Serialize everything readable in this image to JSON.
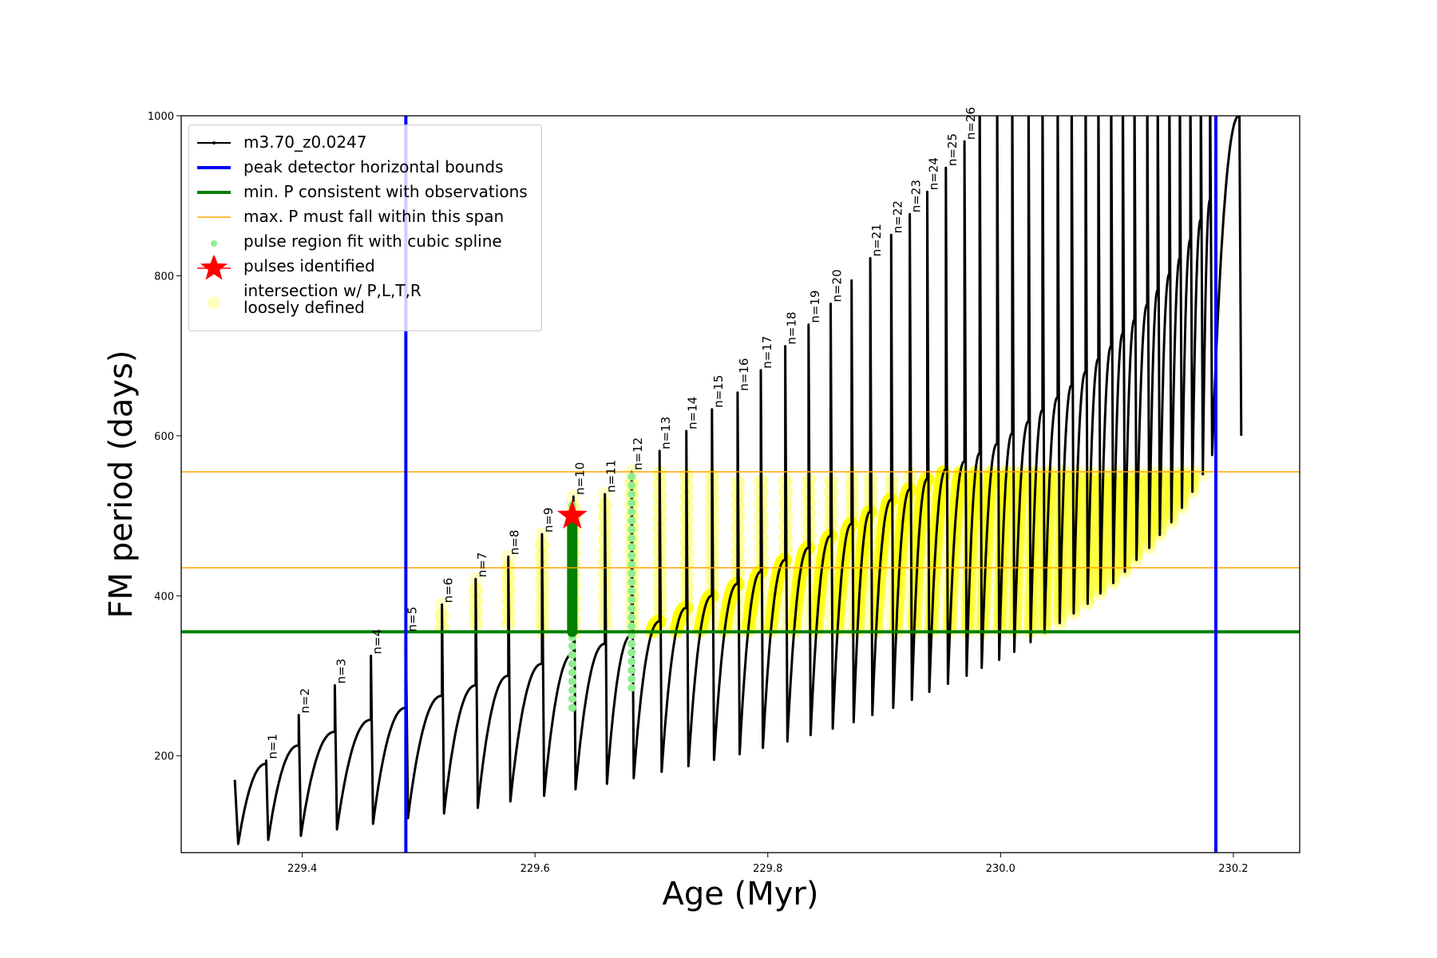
{
  "chart_data": {
    "type": "line",
    "title": "",
    "xlabel": "Age (Myr)",
    "ylabel": "FM period (days)",
    "xlim": [
      229.296,
      230.257
    ],
    "ylim": [
      79,
      1000
    ],
    "xticks": [
      "229.4",
      "229.6",
      "229.8",
      "230.0",
      "230.2"
    ],
    "yticks": [
      "200",
      "400",
      "600",
      "800",
      "1000"
    ],
    "grid": false,
    "legend_placement": "top-left",
    "track": {
      "name": "m3.70_z0.0247",
      "color": "#000000",
      "start": {
        "age": 229.342,
        "period": 170
      },
      "first_trough": {
        "age": 229.345,
        "period": 90
      },
      "pulse_ages": [
        229.369,
        229.397,
        229.428,
        229.459,
        229.489,
        229.52,
        229.549,
        229.577,
        229.606,
        229.633,
        229.66,
        229.683,
        229.707,
        229.73,
        229.752,
        229.774,
        229.794,
        229.815,
        229.835,
        229.854,
        229.872,
        229.888,
        229.906,
        229.922,
        229.937,
        229.953,
        229.969,
        229.982,
        229.997,
        230.01,
        230.024,
        230.036,
        230.049,
        230.061,
        230.073,
        230.084,
        230.095,
        230.105,
        230.115,
        230.126,
        230.135,
        230.145,
        230.154,
        230.163,
        230.172,
        230.18,
        230.205
      ],
      "pre_pulse_period": [
        190,
        213,
        230,
        245,
        260,
        275,
        288,
        300,
        315,
        328,
        340,
        351,
        368,
        385,
        400,
        415,
        430,
        445,
        460,
        475,
        490,
        505,
        520,
        533,
        546,
        558,
        568,
        578,
        590,
        603,
        618,
        632,
        648,
        663,
        680,
        696,
        712,
        728,
        745,
        764,
        782,
        802,
        822,
        845,
        870,
        895,
        1000
      ],
      "pulse_peak_period": [
        194,
        251,
        288,
        325,
        353,
        389,
        421,
        449,
        477,
        524,
        527,
        555,
        581,
        606,
        633,
        654,
        682,
        712,
        739,
        765,
        794,
        822,
        851,
        877,
        905,
        935,
        968,
        1000,
        1000,
        1000,
        1000,
        1000,
        1000,
        1000,
        1000,
        1000,
        1000,
        1000,
        1000,
        1000,
        1000,
        1000,
        1000,
        1000,
        1000,
        1000,
        1000
      ],
      "post_pulse_trough": [
        95,
        100,
        108,
        115,
        122,
        128,
        135,
        143,
        150,
        158,
        165,
        172,
        180,
        187,
        195,
        202,
        210,
        218,
        226,
        234,
        242,
        251,
        260,
        270,
        280,
        290,
        300,
        310,
        320,
        330,
        342,
        354,
        366,
        378,
        390,
        403,
        416,
        430,
        445,
        460,
        476,
        492,
        510,
        530,
        552,
        576,
        600
      ]
    },
    "pulse_labels": [
      {
        "text": "n=1",
        "pulse": 0
      },
      {
        "text": "n=2",
        "pulse": 1
      },
      {
        "text": "n=3",
        "pulse": 2
      },
      {
        "text": "n=4",
        "pulse": 3
      },
      {
        "text": "n=5",
        "pulse": 4
      },
      {
        "text": "n=6",
        "pulse": 5
      },
      {
        "text": "n=7",
        "pulse": 6
      },
      {
        "text": "n=8",
        "pulse": 7
      },
      {
        "text": "n=9",
        "pulse": 8
      },
      {
        "text": "n=10",
        "pulse": 9
      },
      {
        "text": "n=11",
        "pulse": 10
      },
      {
        "text": "n=12",
        "pulse": 11
      },
      {
        "text": "n=13",
        "pulse": 12
      },
      {
        "text": "n=14",
        "pulse": 13
      },
      {
        "text": "n=15",
        "pulse": 14
      },
      {
        "text": "n=16",
        "pulse": 15
      },
      {
        "text": "n=17",
        "pulse": 16
      },
      {
        "text": "n=18",
        "pulse": 17
      },
      {
        "text": "n=19",
        "pulse": 18
      },
      {
        "text": "n=20",
        "pulse": 19
      },
      {
        "text": "n=21",
        "pulse": 21
      },
      {
        "text": "n=22",
        "pulse": 22
      },
      {
        "text": "n=23",
        "pulse": 23
      },
      {
        "text": "n=24",
        "pulse": 24
      },
      {
        "text": "n=25",
        "pulse": 25
      },
      {
        "text": "n=26",
        "pulse": 26
      }
    ],
    "peak_detector_bounds": {
      "name": "peak detector horizontal bounds",
      "color": "#0000ff",
      "ages": [
        229.489,
        230.185
      ]
    },
    "min_period": {
      "name": "min. P consistent with observations",
      "color": "#008000",
      "period": 355
    },
    "max_period_span": {
      "name": "max. P must fall within this span",
      "color": "#ffa500",
      "periods": [
        435,
        555
      ]
    },
    "spline_fit_regions": {
      "name": "pulse region fit with cubic spline",
      "color": "#90ee90",
      "regions": [
        {
          "age": 229.632,
          "from": 260,
          "to": 520
        },
        {
          "age": 229.683,
          "from": 285,
          "to": 555
        }
      ]
    },
    "selected_fit": {
      "color": "#008000",
      "age": 229.632,
      "from": 355,
      "to": 500
    },
    "pulses_identified": {
      "name": "pulses identified",
      "color": "#ff0000",
      "points": [
        {
          "age": 229.632,
          "period": 500
        }
      ]
    },
    "intersection": {
      "name": "intersection w/ P,L,T,R\nloosely defined",
      "line1": "intersection w/ P,L,T,R",
      "line2": "loosely defined",
      "color": "#ffff00"
    }
  }
}
